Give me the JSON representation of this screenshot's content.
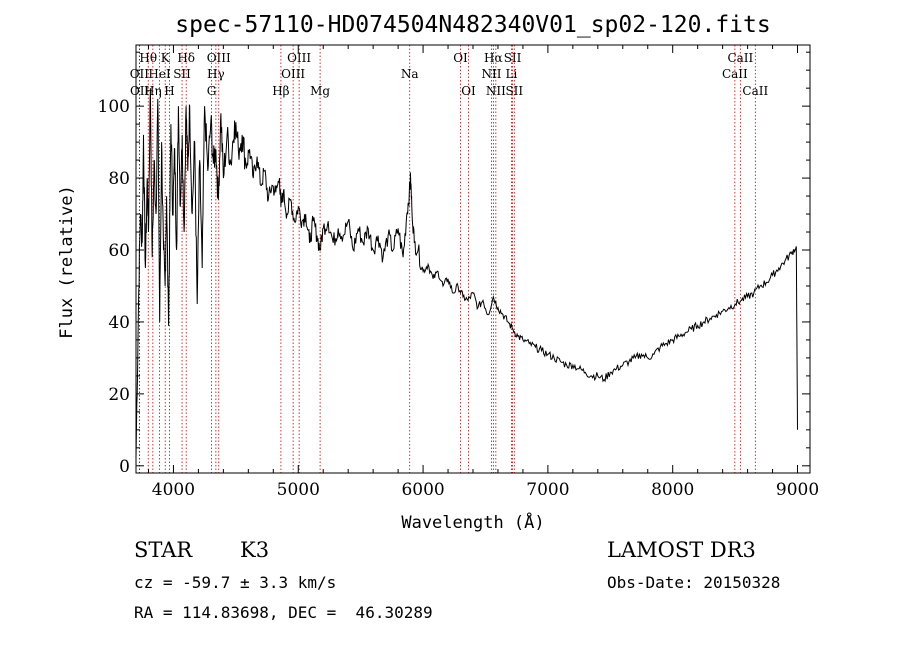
{
  "chart_data": {
    "type": "line",
    "title": "spec-57110-HD074504N482340V01_sp02-120.fits",
    "xlabel": "Wavelength (Å)",
    "ylabel": "Flux (relative)",
    "xlim": [
      3700,
      9100
    ],
    "ylim": [
      -2,
      117
    ],
    "x_ticks": [
      4000,
      5000,
      6000,
      7000,
      8000,
      9000
    ],
    "y_ticks": [
      0,
      20,
      40,
      60,
      80,
      100
    ],
    "grid": false,
    "series": [
      {
        "x": [
          3700,
          3720,
          3735,
          3750,
          3760,
          3775,
          3790,
          3800,
          3815,
          3830,
          3845,
          3860,
          3875,
          3890,
          3905,
          3920,
          3933,
          3945,
          3960,
          3968,
          3980,
          3995,
          4010,
          4025,
          4040,
          4055,
          4070,
          4085,
          4101,
          4115,
          4130,
          4150,
          4170,
          4190,
          4210,
          4230,
          4250,
          4275,
          4300,
          4320,
          4340,
          4360,
          4380,
          4400,
          4430,
          4460,
          4490,
          4520,
          4550,
          4580,
          4610,
          4640,
          4670,
          4700,
          4730,
          4760,
          4790,
          4820,
          4850,
          4861,
          4880,
          4910,
          4940,
          4970,
          5000,
          5030,
          5060,
          5090,
          5120,
          5150,
          5175,
          5200,
          5240,
          5280,
          5320,
          5360,
          5400,
          5440,
          5480,
          5520,
          5560,
          5600,
          5640,
          5680,
          5720,
          5760,
          5800,
          5840,
          5870,
          5890,
          5900,
          5910,
          5930,
          5960,
          6000,
          6040,
          6080,
          6120,
          6160,
          6200,
          6240,
          6280,
          6320,
          6360,
          6400,
          6440,
          6480,
          6520,
          6563,
          6600,
          6640,
          6680,
          6720,
          6760,
          6800,
          6850,
          6900,
          6950,
          7000,
          7050,
          7100,
          7150,
          7200,
          7250,
          7300,
          7350,
          7400,
          7450,
          7500,
          7550,
          7600,
          7650,
          7700,
          7750,
          7800,
          7850,
          7900,
          7950,
          8000,
          8050,
          8100,
          8150,
          8200,
          8250,
          8300,
          8350,
          8400,
          8450,
          8500,
          8550,
          8600,
          8650,
          8700,
          8750,
          8800,
          8850,
          8900,
          8950,
          8990,
          9000
        ],
        "values": [
          2,
          45,
          70,
          62,
          92,
          55,
          80,
          65,
          105,
          58,
          85,
          70,
          102,
          40,
          90,
          60,
          50,
          75,
          40,
          60,
          95,
          70,
          88,
          60,
          100,
          72,
          92,
          65,
          100,
          82,
          100,
          70,
          90,
          45,
          85,
          55,
          100,
          82,
          96,
          84,
          88,
          74,
          98,
          80,
          92,
          84,
          96,
          88,
          92,
          84,
          88,
          80,
          86,
          78,
          82,
          74,
          78,
          76,
          80,
          72,
          76,
          70,
          74,
          68,
          72,
          68,
          70,
          62,
          68,
          64,
          60,
          66,
          68,
          62,
          66,
          64,
          68,
          60,
          66,
          62,
          66,
          60,
          64,
          58,
          64,
          60,
          66,
          58,
          70,
          76,
          80,
          72,
          62,
          60,
          54,
          56,
          52,
          54,
          50,
          52,
          48,
          50,
          47,
          46,
          48,
          44,
          46,
          42,
          47,
          44,
          42,
          40,
          38,
          36,
          35,
          34,
          33,
          32,
          31,
          30,
          29,
          28,
          28,
          27,
          26,
          25,
          25,
          24,
          26,
          27,
          28,
          29,
          30,
          31,
          30,
          31,
          33,
          34,
          35,
          36,
          37,
          38,
          39,
          40,
          41,
          42,
          43,
          44,
          45,
          46,
          47,
          48,
          50,
          51,
          53,
          55,
          57,
          59,
          61,
          10
        ]
      }
    ],
    "spectral_lines": [
      {
        "label": "Hθ",
        "x": 3798,
        "row": 1
      },
      {
        "label": "OII",
        "x": 3727,
        "row": 2
      },
      {
        "label": "OII",
        "x": 3729,
        "row": 3
      },
      {
        "label": "Hη",
        "x": 3835,
        "row": 3
      },
      {
        "label": "HeI",
        "x": 3889,
        "row": 2
      },
      {
        "label": "K",
        "x": 3934,
        "row": 1
      },
      {
        "label": "H",
        "x": 3968,
        "row": 3
      },
      {
        "label": "SII",
        "x": 4069,
        "row": 2
      },
      {
        "label": "Hδ",
        "x": 4102,
        "row": 1
      },
      {
        "label": "OIII",
        "x": 4363,
        "row": 1
      },
      {
        "label": "Hγ",
        "x": 4340,
        "row": 2
      },
      {
        "label": "G",
        "x": 4305,
        "row": 3
      },
      {
        "label": "Hβ",
        "x": 4861,
        "row": 3
      },
      {
        "label": "OIII",
        "x": 5007,
        "row": 1
      },
      {
        "label": "OIII",
        "x": 4959,
        "row": 2
      },
      {
        "label": "Mg",
        "x": 5175,
        "row": 3
      },
      {
        "label": "Na",
        "x": 5893,
        "row": 2
      },
      {
        "label": "OI",
        "x": 6300,
        "row": 1
      },
      {
        "label": "OI",
        "x": 6364,
        "row": 3
      },
      {
        "label": "Hα",
        "x": 6563,
        "row": 1
      },
      {
        "label": "NII",
        "x": 6548,
        "row": 2
      },
      {
        "label": "NII",
        "x": 6583,
        "row": 3
      },
      {
        "label": "SII",
        "x": 6717,
        "row": 1
      },
      {
        "label": "Li",
        "x": 6708,
        "row": 2
      },
      {
        "label": "SII",
        "x": 6731,
        "row": 3
      },
      {
        "label": "CaII",
        "x": 8542,
        "row": 1
      },
      {
        "label": "CaII",
        "x": 8498,
        "row": 2
      },
      {
        "label": "CaII",
        "x": 8662,
        "row": 3
      }
    ]
  },
  "info": {
    "object_class": "STAR",
    "subclass": "K3",
    "survey": "LAMOST DR3",
    "cz": "cz = -59.7 ± 3.3 km/s",
    "obs_date": "Obs-Date: 20150328",
    "coords": "RA = 114.83698, DEC =  46.30289"
  },
  "colors": {
    "spectrum": "#000000",
    "line_marker": "#cc0000",
    "axes": "#000000",
    "background": "#ffffff"
  }
}
